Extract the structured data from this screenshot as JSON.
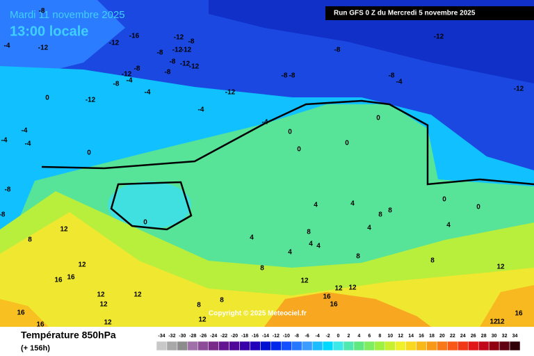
{
  "header": {
    "date": "Mardi 11 novembre 2025",
    "time": "13:00 locale",
    "run": "Run GFS 0 Z du Mercredi 5 novembre 2025"
  },
  "copyright": "Copyright © 2025 Meteociel.fr",
  "legend": {
    "title": "Température 850hPa",
    "subtitle": "(+ 156h)",
    "ticks": [
      -34,
      -32,
      -30,
      -28,
      -26,
      -24,
      -22,
      -20,
      -18,
      -16,
      -14,
      -12,
      -10,
      -8,
      -6,
      -4,
      -2,
      0,
      2,
      4,
      6,
      8,
      10,
      12,
      14,
      16,
      18,
      20,
      22,
      24,
      26,
      28,
      30,
      32,
      34
    ],
    "colors": [
      "#c8c8c8",
      "#a8a8a8",
      "#8c8c8c",
      "#a070a8",
      "#8c4c98",
      "#782c88",
      "#641490",
      "#500898",
      "#3800a8",
      "#2000b8",
      "#0010d0",
      "#0028e8",
      "#1450ff",
      "#2878ff",
      "#3c9cff",
      "#1cbcff",
      "#00d8ff",
      "#3ce8e8",
      "#50e8b0",
      "#60e880",
      "#80ec60",
      "#a0f040",
      "#c8f030",
      "#f0f028",
      "#f8d820",
      "#f8b818",
      "#f89818",
      "#f87818",
      "#f85818",
      "#f03818",
      "#e01818",
      "#c00818",
      "#900010",
      "#600010",
      "#300008"
    ]
  },
  "contour_labels": [
    -4,
    -12,
    -8,
    -16,
    -12,
    -12,
    -8,
    -8,
    -12,
    -12,
    -8,
    -12,
    -12,
    -8,
    -12,
    -4,
    -8,
    -4,
    -8,
    -12,
    -12,
    -4,
    0,
    -4,
    -4,
    -4,
    0,
    -4,
    0,
    0,
    0,
    0,
    -8,
    -8,
    -8,
    -12,
    -12,
    -8,
    -4,
    -8,
    -8,
    0,
    4,
    12,
    8,
    12,
    16,
    16,
    12,
    12,
    16,
    16,
    12,
    12,
    8,
    8,
    4,
    4,
    4,
    4,
    4,
    4,
    8,
    4,
    0,
    0,
    8,
    8,
    8,
    12,
    12,
    12,
    12,
    16,
    16,
    8,
    8,
    12,
    16,
    12,
    12
  ]
}
